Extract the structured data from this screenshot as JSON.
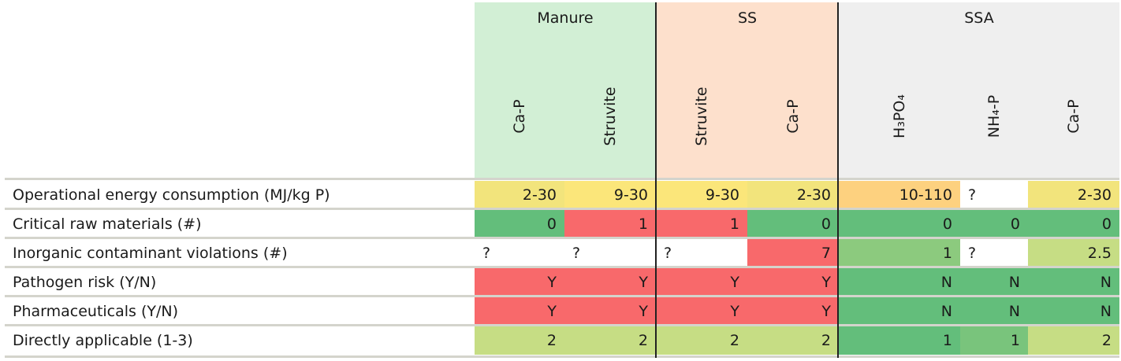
{
  "chart_data": {
    "type": "table",
    "groups": [
      {
        "label": "Manure",
        "color": "#d2efd5",
        "columns": [
          "Ca-P",
          "Struvite"
        ]
      },
      {
        "label": "SS",
        "color": "#fde0cc",
        "columns": [
          "Struvite",
          "Ca-P"
        ]
      },
      {
        "label": "SSA",
        "color": "#efefef",
        "columns": [
          "H₃PO₄",
          "NH₄-P",
          "Ca-P"
        ]
      }
    ],
    "rows": [
      {
        "label": "Operational energy consumption (MJ/kg P)",
        "values": [
          "2-30",
          "9-30",
          "9-30",
          "2-30",
          "10-110",
          "?",
          "2-30"
        ],
        "colors": [
          "#f2e47c",
          "#fbe67a",
          "#fbe67a",
          "#f2e47c",
          "#fdd17f",
          "#ffffff",
          "#f2e47c"
        ]
      },
      {
        "label": "Critical raw materials (#)",
        "values": [
          "0",
          "1",
          "1",
          "0",
          "0",
          "0",
          "0"
        ],
        "colors": [
          "#63be7b",
          "#f8696b",
          "#f8696b",
          "#63be7b",
          "#63be7b",
          "#63be7b",
          "#63be7b"
        ]
      },
      {
        "label": "Inorganic contaminant violations (#)",
        "values": [
          "?",
          "?",
          "?",
          "7",
          "1",
          "?",
          "2.5"
        ],
        "colors": [
          "#ffffff",
          "#ffffff",
          "#ffffff",
          "#f8696b",
          "#8cca7e",
          "#ffffff",
          "#c6dd84"
        ]
      },
      {
        "label": "Pathogen risk (Y/N)",
        "values": [
          "Y",
          "Y",
          "Y",
          "Y",
          "N",
          "N",
          "N"
        ],
        "colors": [
          "#f8696b",
          "#f8696b",
          "#f8696b",
          "#f8696b",
          "#63be7b",
          "#63be7b",
          "#63be7b"
        ]
      },
      {
        "label": "Pharmaceuticals (Y/N)",
        "values": [
          "Y",
          "Y",
          "Y",
          "Y",
          "N",
          "N",
          "N"
        ],
        "colors": [
          "#f8696b",
          "#f8696b",
          "#f8696b",
          "#f8696b",
          "#63be7b",
          "#63be7b",
          "#63be7b"
        ]
      },
      {
        "label": "Directly applicable (1-3)",
        "values": [
          "2",
          "2",
          "2",
          "2",
          "1",
          "1",
          "2"
        ],
        "colors": [
          "#c6dd84",
          "#c6dd84",
          "#c6dd84",
          "#c6dd84",
          "#63be7b",
          "#79c47c",
          "#c6dd84"
        ]
      }
    ]
  }
}
